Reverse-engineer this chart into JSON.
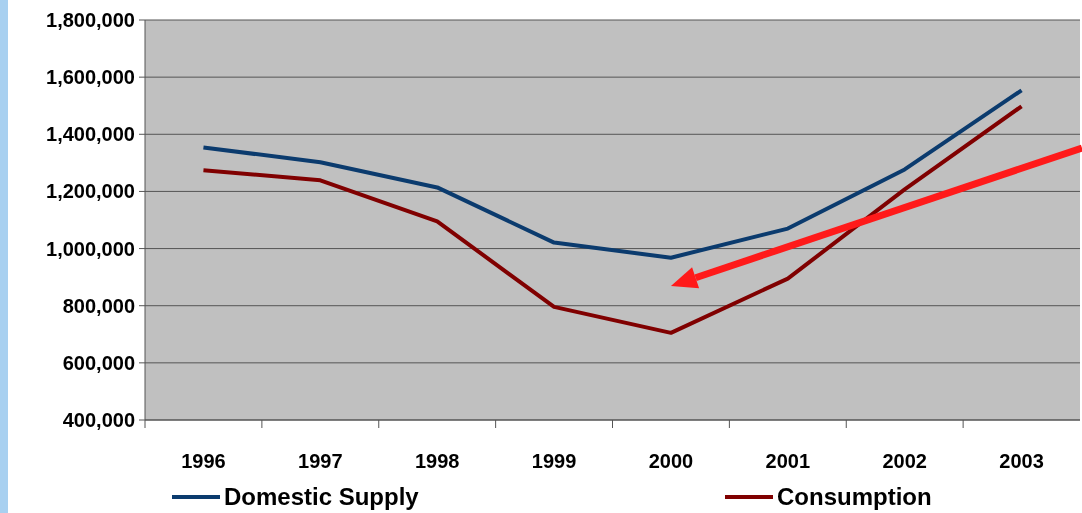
{
  "chart_data": {
    "type": "line",
    "categories": [
      "1996",
      "1997",
      "1998",
      "1999",
      "2000",
      "2001",
      "2002",
      "2003"
    ],
    "series": [
      {
        "name": "Domestic Supply",
        "color": "#0b3b6e",
        "values": [
          1354000,
          1302000,
          1214000,
          1021000,
          968000,
          1070000,
          1277000,
          1554000
        ]
      },
      {
        "name": "Consumption",
        "color": "#800000",
        "values": [
          1274000,
          1239000,
          1095000,
          796000,
          705000,
          895000,
          1207000,
          1498000
        ]
      }
    ],
    "ylim": [
      400000,
      1800000
    ],
    "yticks": [
      {
        "value": 400000,
        "label": "400,000"
      },
      {
        "value": 600000,
        "label": "600,000"
      },
      {
        "value": 800000,
        "label": "800,000"
      },
      {
        "value": 1000000,
        "label": "1,000,000"
      },
      {
        "value": 1200000,
        "label": "1,200,000"
      },
      {
        "value": 1400000,
        "label": "1,400,000"
      },
      {
        "value": 1600000,
        "label": "1,600,000"
      },
      {
        "value": 1800000,
        "label": "1,800,000"
      }
    ],
    "grid": "y",
    "legend": "bottom",
    "marker": "none",
    "line_style": "solid"
  }
}
